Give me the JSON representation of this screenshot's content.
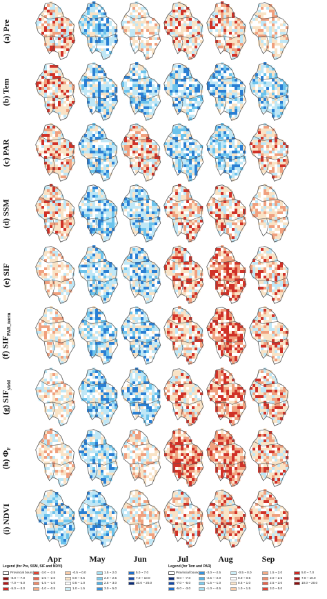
{
  "rows": [
    {
      "id": "pre",
      "label": "(a) Pre"
    },
    {
      "id": "tem",
      "label": "(b) Tem"
    },
    {
      "id": "par",
      "label": "(c) PAR"
    },
    {
      "id": "ssm",
      "label": "(d) SSM"
    },
    {
      "id": "sif",
      "label": "(e) SIF"
    },
    {
      "id": "sif_par_norm",
      "label": "(f) SIF",
      "sub": "PAR_norm"
    },
    {
      "id": "sif_yield",
      "label": "(g) SIF",
      "sub": "yield"
    },
    {
      "id": "phi_f",
      "label": "(h) Φ",
      "sub": "F"
    },
    {
      "id": "ndvi",
      "label": "(i) NDVI"
    }
  ],
  "months": [
    "Apr",
    "May",
    "Jun",
    "Jul",
    "Aug",
    "Sep"
  ],
  "legend_left": {
    "title": "Legend (for Pre, SSM, SIF and NDVI)",
    "boundary": "Provincial boundary",
    "items": [
      {
        "label": "-8.0 ~ -7.0",
        "color": "#8b0d0d"
      },
      {
        "label": "-7.0 ~ -5.0",
        "color": "#b01818"
      },
      {
        "label": "-5.0 ~ -3.0",
        "color": "#cc2a24"
      },
      {
        "label": "-3.0 ~ -2.5",
        "color": "#dd4535"
      },
      {
        "label": "-2.5 ~ -2.0",
        "color": "#e6634c"
      },
      {
        "label": "-1.5 ~ -1.0",
        "color": "#ee8a69"
      },
      {
        "label": "-1.0 ~ -0.5",
        "color": "#f3ab86"
      },
      {
        "label": "-0.5 ~ 0.0",
        "color": "#f7cba8"
      },
      {
        "label": "0.0 ~ 0.5",
        "color": "#fbe6cc"
      },
      {
        "label": "0.5 ~ 1.0",
        "color": "#ffffff"
      },
      {
        "label": "1.0 ~ 1.5",
        "color": "#cdeef7"
      },
      {
        "label": "1.5 ~ 2.0",
        "color": "#a6e0f3"
      },
      {
        "label": "2.0 ~ 2.5",
        "color": "#7ccbee"
      },
      {
        "label": "2.5 ~ 3.0",
        "color": "#55b3e6"
      },
      {
        "label": "3.0 ~ 5.0",
        "color": "#3592dc"
      },
      {
        "label": "5.0 ~ 7.0",
        "color": "#1f6ecb"
      },
      {
        "label": "7.0 ~ 10.0",
        "color": "#1449a8"
      },
      {
        "label": "10.0 ~ 20.0",
        "color": "#0b2d7a"
      }
    ]
  },
  "legend_right": {
    "title": "Legend (for Tem and PAR)",
    "boundary": "Provincial boundary",
    "items": [
      {
        "label": "-8.0 ~ -7.0",
        "color": "#0b2d7a"
      },
      {
        "label": "-7.0 ~ -5.0",
        "color": "#1449a8"
      },
      {
        "label": "-5.0 ~ -3.0",
        "color": "#1f6ecb"
      },
      {
        "label": "-3.0 ~ -2.5",
        "color": "#3592dc"
      },
      {
        "label": "-2.5 ~ -2.0",
        "color": "#55b3e6"
      },
      {
        "label": "-1.5 ~ -1.0",
        "color": "#7ccbee"
      },
      {
        "label": "-1.0 ~ -0.5",
        "color": "#a6e0f3"
      },
      {
        "label": "-0.5 ~ 0.0",
        "color": "#cdeef7"
      },
      {
        "label": "0.0 ~ 0.5",
        "color": "#ffffff"
      },
      {
        "label": "0.5 ~ 1.0",
        "color": "#fbe6cc"
      },
      {
        "label": "1.0 ~ 1.5",
        "color": "#f7cba8"
      },
      {
        "label": "1.5 ~ 2.0",
        "color": "#f3ab86"
      },
      {
        "label": "2.0 ~ 2.5",
        "color": "#ee8a69"
      },
      {
        "label": "2.5 ~ 3.0",
        "color": "#e6634c"
      },
      {
        "label": "3.0 ~ 5.0",
        "color": "#dd4535"
      },
      {
        "label": "5.0 ~ 7.0",
        "color": "#cc2a24"
      },
      {
        "label": "7.0 ~ 10.0",
        "color": "#b01818"
      },
      {
        "label": "10.0 ~ 20.0",
        "color": "#8b0d0d"
      }
    ]
  },
  "palette": {
    "red_strong": "#d03228",
    "red_light": "#f0a07e",
    "cream": "#f9e3c6",
    "white": "#ffffff",
    "blue_light": "#bfe7f6",
    "blue_mid": "#6cc3ec",
    "blue_strong": "#2a7fd3",
    "boundary": "#555555"
  },
  "tone_grid": [
    [
      1,
      -1,
      0,
      1,
      1,
      0
    ],
    [
      1,
      -1,
      -1,
      -1,
      -1,
      -1
    ],
    [
      1,
      -1,
      1,
      -1,
      -1,
      1
    ],
    [
      1,
      -1,
      -1,
      1,
      1,
      0
    ],
    [
      0,
      -1,
      -1,
      1,
      2,
      1
    ],
    [
      0,
      -1,
      -1,
      1,
      2,
      1
    ],
    [
      0,
      -1,
      -1,
      1,
      2,
      1
    ],
    [
      0,
      -1,
      0,
      2,
      2,
      1
    ],
    [
      -1,
      -1,
      0,
      1,
      1,
      1
    ]
  ]
}
